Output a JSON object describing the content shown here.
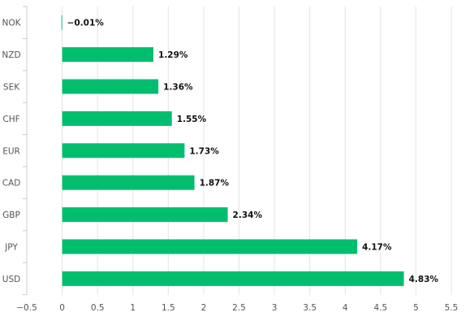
{
  "chart_data": {
    "type": "bar",
    "orientation": "horizontal",
    "categories": [
      "NOK",
      "NZD",
      "SEK",
      "CHF",
      "EUR",
      "CAD",
      "GBP",
      "JPY",
      "USD"
    ],
    "values": [
      -0.01,
      1.29,
      1.36,
      1.55,
      1.73,
      1.87,
      2.34,
      4.17,
      4.83
    ],
    "data_labels": [
      "−0.01%",
      "1.29%",
      "1.36%",
      "1.55%",
      "1.73%",
      "1.87%",
      "2.34%",
      "4.17%",
      "4.83%"
    ],
    "x_ticks": [
      -0.5,
      0,
      0.5,
      1,
      1.5,
      2,
      2.5,
      3,
      3.5,
      4,
      4.5,
      5,
      5.5
    ],
    "x_tick_labels": [
      "−0.5",
      "0",
      "0.5",
      "1",
      "1.5",
      "2",
      "2.5",
      "3",
      "3.5",
      "4",
      "4.5",
      "5",
      "5.5"
    ],
    "xlim": [
      -0.5,
      5.5
    ],
    "grid": "vertical",
    "legend": "none",
    "title": "",
    "xlabel": "",
    "ylabel": ""
  },
  "colors": {
    "bar": "#00be6e",
    "grid": "#e4e4e4",
    "axis": "#cccccc",
    "tick_text": "#555555",
    "label_text": "#111111"
  }
}
